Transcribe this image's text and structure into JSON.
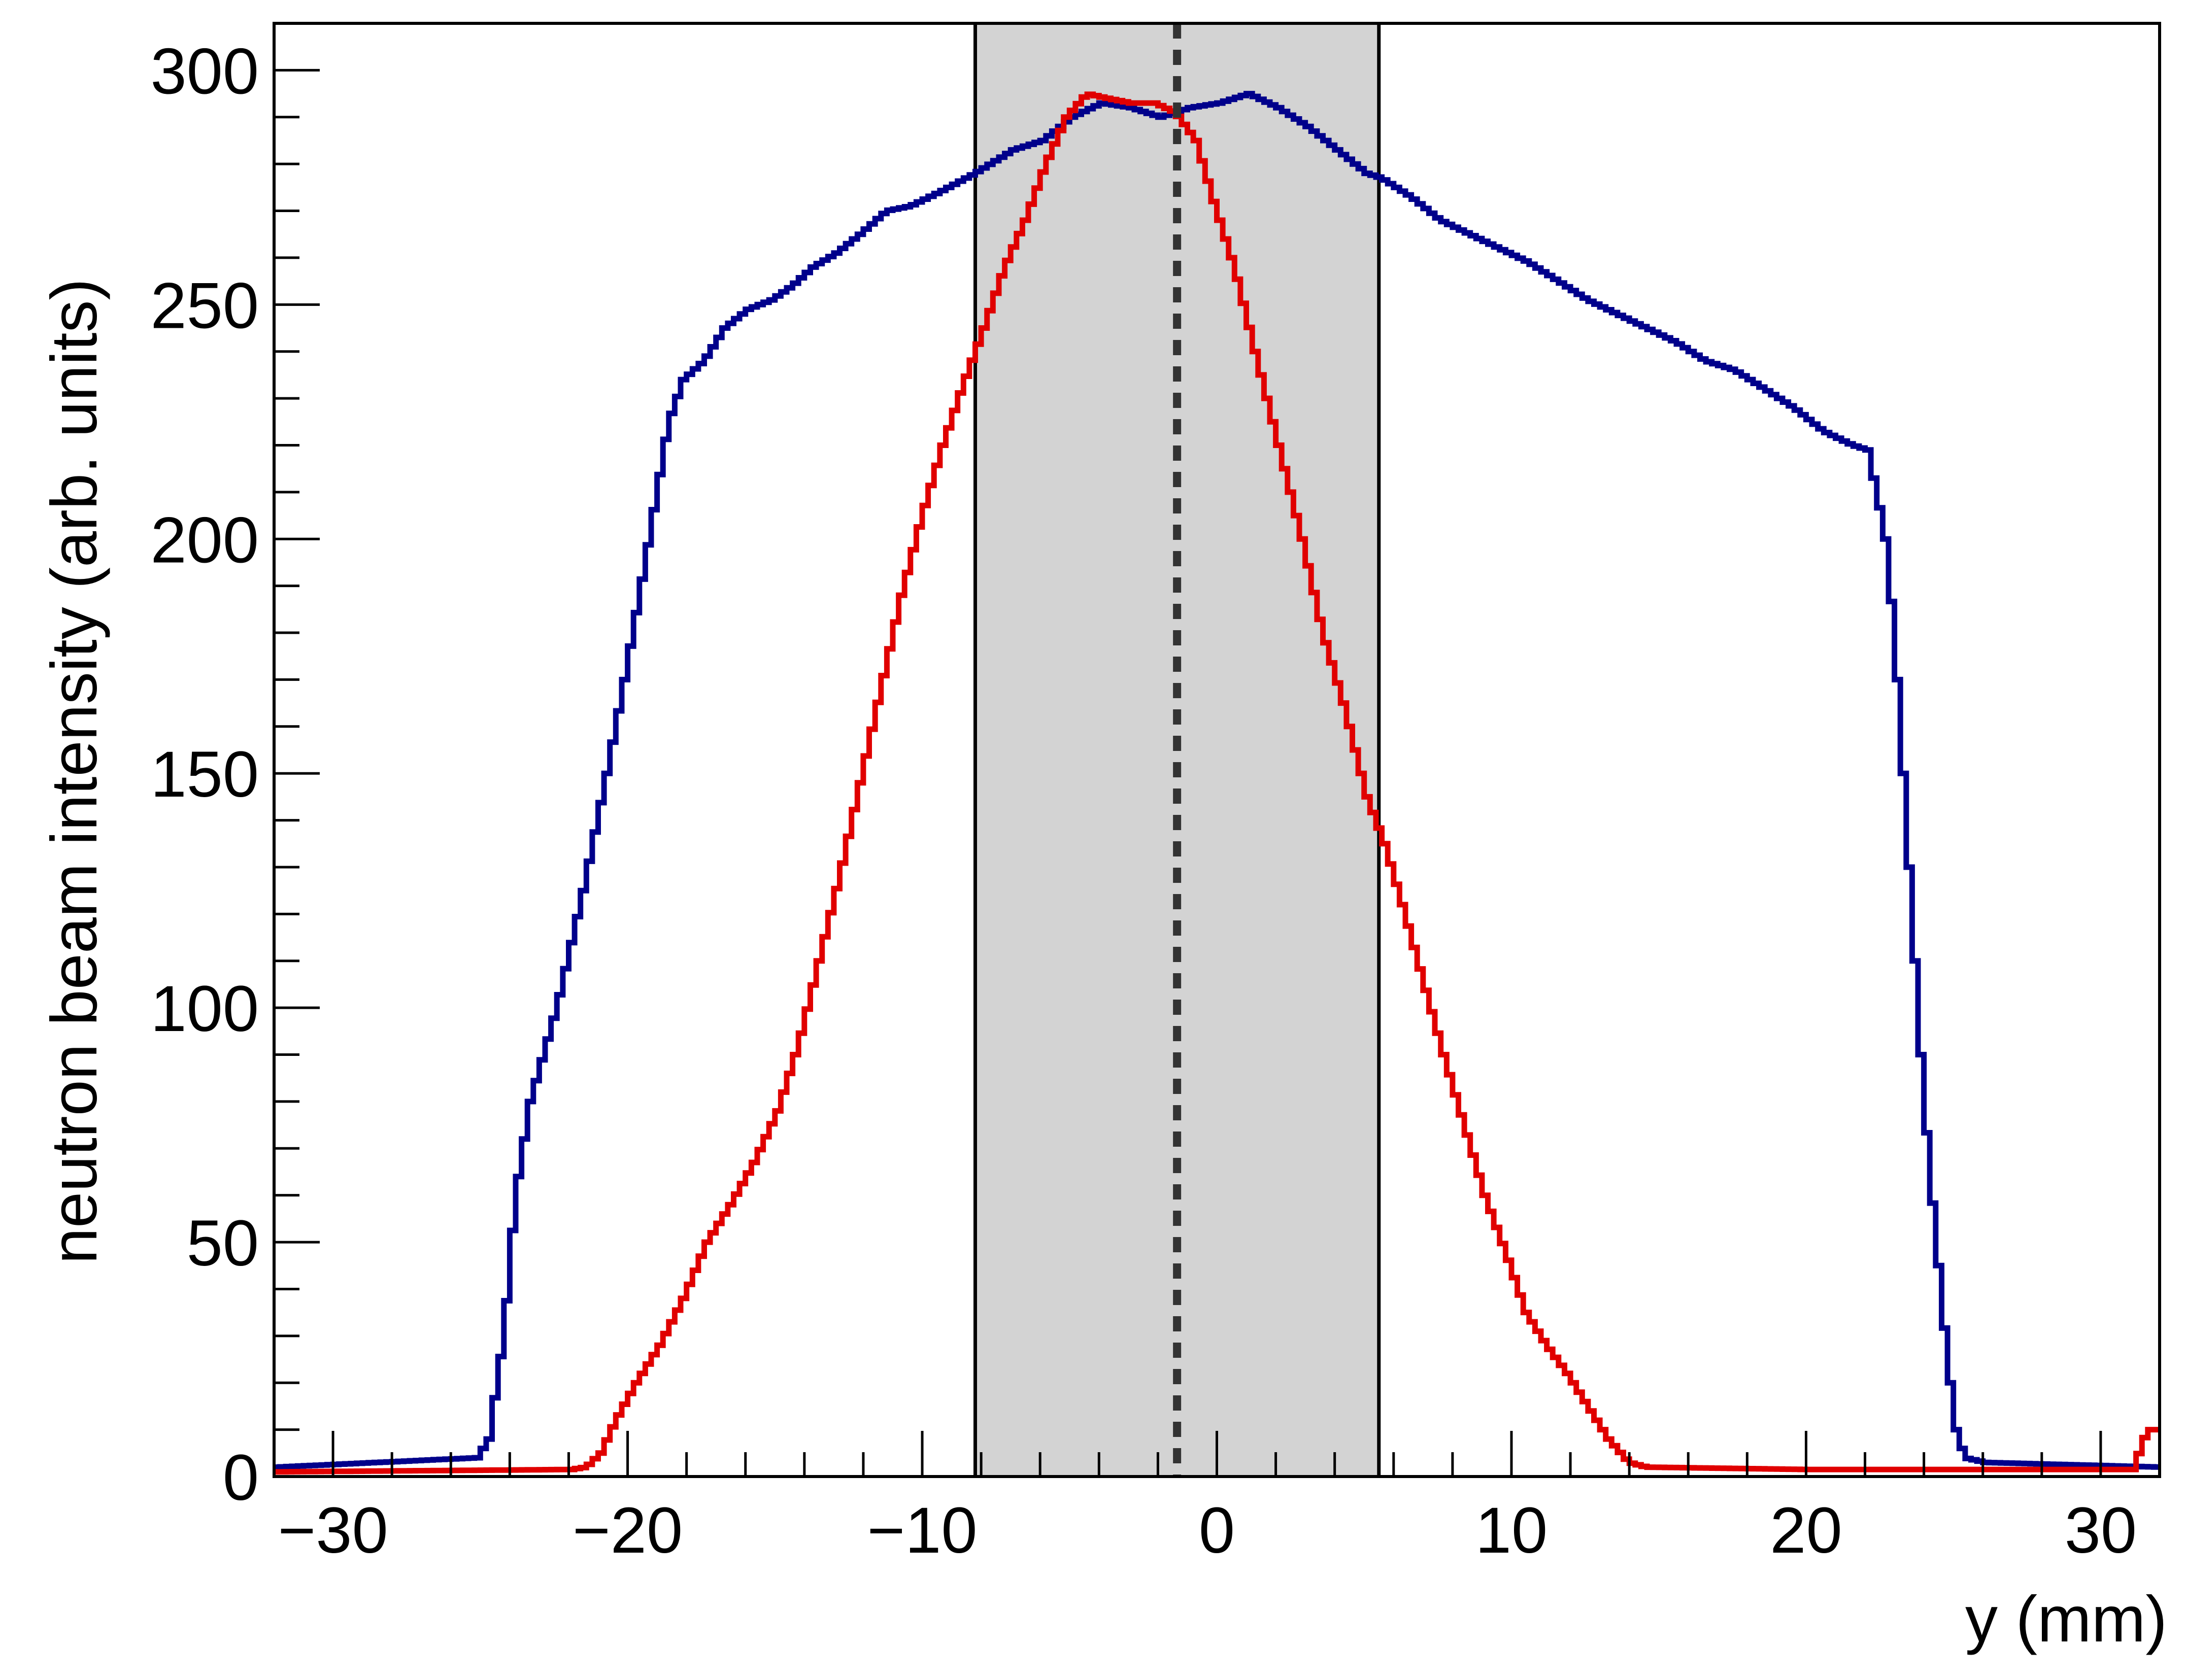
{
  "chart_data": {
    "type": "line",
    "title": "",
    "xlabel": "y (mm)",
    "ylabel": "neutron beam intensity (arb. units)",
    "xlim": [
      -32,
      32
    ],
    "ylim": [
      0,
      310
    ],
    "grid": false,
    "legend": "none",
    "x_ticks": [
      -30,
      -20,
      -10,
      0,
      10,
      20,
      30
    ],
    "x_tick_labels": [
      "−30",
      "−20",
      "−10",
      "0",
      "10",
      "20",
      "30"
    ],
    "y_ticks": [
      0,
      50,
      100,
      150,
      200,
      250,
      300
    ],
    "y_tick_labels": [
      "0",
      "50",
      "100",
      "150",
      "200",
      "250",
      "300"
    ],
    "shaded_band": {
      "x_from": -8.2,
      "x_to": 5.5,
      "color": "#d3d3d3"
    },
    "vertical_marker": {
      "x": -1.35,
      "style": "dashed"
    },
    "series": [
      {
        "color": "#00008b",
        "points": [
          [
            -32,
            2
          ],
          [
            -25.2,
            4
          ],
          [
            -24.8,
            8
          ],
          [
            -24.3,
            30
          ],
          [
            -23.9,
            60
          ],
          [
            -23.4,
            80
          ],
          [
            -22.5,
            100
          ],
          [
            -21.6,
            125
          ],
          [
            -20.8,
            150
          ],
          [
            -20.2,
            170
          ],
          [
            -19.5,
            195
          ],
          [
            -18.7,
            225
          ],
          [
            -18.2,
            234
          ],
          [
            -17.5,
            238
          ],
          [
            -16.8,
            245
          ],
          [
            -16.0,
            249
          ],
          [
            -15.2,
            251
          ],
          [
            -14.5,
            254
          ],
          [
            -13.8,
            258
          ],
          [
            -13.0,
            261
          ],
          [
            -12.2,
            265
          ],
          [
            -11.3,
            270
          ],
          [
            -10.5,
            271
          ],
          [
            -9.5,
            274
          ],
          [
            -8.3,
            278
          ],
          [
            -7.0,
            283
          ],
          [
            -6.0,
            285
          ],
          [
            -5.0,
            290
          ],
          [
            -4.0,
            293
          ],
          [
            -3.0,
            292
          ],
          [
            -2.0,
            290
          ],
          [
            -1.0,
            292
          ],
          [
            0.0,
            293
          ],
          [
            1.0,
            295
          ],
          [
            2.0,
            292
          ],
          [
            3.0,
            288
          ],
          [
            4.0,
            283
          ],
          [
            5.0,
            278
          ],
          [
            5.5,
            277
          ],
          [
            6.5,
            273
          ],
          [
            7.5,
            268
          ],
          [
            8.5,
            265
          ],
          [
            9.5,
            262
          ],
          [
            10.5,
            259
          ],
          [
            11.5,
            255
          ],
          [
            12.5,
            251
          ],
          [
            13.5,
            248
          ],
          [
            14.5,
            245
          ],
          [
            15.5,
            242
          ],
          [
            16.5,
            238
          ],
          [
            17.5,
            236
          ],
          [
            18.5,
            232
          ],
          [
            19.5,
            228
          ],
          [
            20.5,
            223
          ],
          [
            21.5,
            220
          ],
          [
            22.0,
            219
          ],
          [
            22.3,
            210
          ],
          [
            22.6,
            200
          ],
          [
            22.9,
            180
          ],
          [
            23.2,
            150
          ],
          [
            23.5,
            120
          ],
          [
            23.8,
            90
          ],
          [
            24.1,
            65
          ],
          [
            24.4,
            45
          ],
          [
            24.7,
            25
          ],
          [
            25.0,
            10
          ],
          [
            25.3,
            4
          ],
          [
            26.0,
            3
          ],
          [
            32,
            2
          ]
        ]
      },
      {
        "color": "#e00000",
        "points": [
          [
            -32,
            1
          ],
          [
            -22.0,
            1.5
          ],
          [
            -21.5,
            2
          ],
          [
            -21.0,
            5
          ],
          [
            -20.5,
            12
          ],
          [
            -19.8,
            20
          ],
          [
            -19.0,
            28
          ],
          [
            -18.2,
            38
          ],
          [
            -17.4,
            50
          ],
          [
            -16.6,
            58
          ],
          [
            -15.8,
            67
          ],
          [
            -15.0,
            78
          ],
          [
            -14.3,
            92
          ],
          [
            -13.6,
            110
          ],
          [
            -12.9,
            128
          ],
          [
            -12.2,
            148
          ],
          [
            -11.5,
            168
          ],
          [
            -10.8,
            188
          ],
          [
            -10.1,
            205
          ],
          [
            -9.4,
            220
          ],
          [
            -8.7,
            233
          ],
          [
            -8.0,
            245
          ],
          [
            -7.3,
            258
          ],
          [
            -6.6,
            268
          ],
          [
            -5.9,
            280
          ],
          [
            -5.2,
            290
          ],
          [
            -4.5,
            295
          ],
          [
            -3.8,
            294
          ],
          [
            -3.0,
            293
          ],
          [
            -2.2,
            293
          ],
          [
            -1.5,
            291
          ],
          [
            -0.8,
            285
          ],
          [
            -0.2,
            272
          ],
          [
            0.5,
            258
          ],
          [
            1.2,
            240
          ],
          [
            2.0,
            220
          ],
          [
            2.8,
            200
          ],
          [
            3.5,
            180
          ],
          [
            4.2,
            165
          ],
          [
            5.0,
            145
          ],
          [
            5.6,
            135
          ],
          [
            6.2,
            122
          ],
          [
            6.9,
            106
          ],
          [
            7.6,
            90
          ],
          [
            8.3,
            75
          ],
          [
            9.0,
            60
          ],
          [
            9.7,
            48
          ],
          [
            10.4,
            35
          ],
          [
            11.1,
            28
          ],
          [
            11.8,
            22
          ],
          [
            12.5,
            15
          ],
          [
            13.2,
            8
          ],
          [
            13.9,
            3
          ],
          [
            14.5,
            2
          ],
          [
            20,
            1.5
          ],
          [
            31.0,
            1.5
          ],
          [
            31.5,
            10
          ],
          [
            32,
            10
          ]
        ]
      }
    ]
  }
}
